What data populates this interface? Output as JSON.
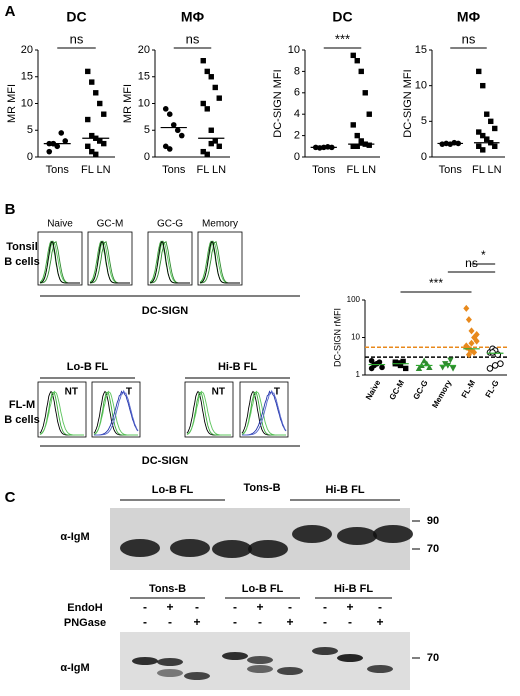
{
  "panel_labels": [
    "A",
    "B",
    "C"
  ],
  "chart_data": [
    {
      "type": "dot",
      "title": "DC",
      "y_label": "MR  MFI",
      "categories": [
        "Tons",
        "FL LN"
      ],
      "values": [
        [
          2.5,
          2.5,
          2,
          4.5,
          3,
          1,
          2.5
        ],
        [
          16,
          14,
          12,
          10,
          8,
          7,
          4,
          3.5,
          3,
          2.5,
          2,
          1,
          0.5,
          3
        ]
      ],
      "medians": [
        2.5,
        3.5
      ],
      "ylim": [
        0,
        20
      ],
      "yticks": [
        0,
        5,
        10,
        15,
        20
      ],
      "significance": "ns",
      "markers": [
        "circle",
        "square"
      ],
      "colors": [
        "#000000",
        "#000000"
      ],
      "median_color": "#000000"
    },
    {
      "type": "dot",
      "title": "MΦ",
      "y_label": "MR  MFI",
      "categories": [
        "Tons",
        "FL LN"
      ],
      "values": [
        [
          9,
          8,
          6,
          5,
          4,
          2,
          1.5
        ],
        [
          18,
          16,
          15,
          13,
          11,
          10,
          9,
          5,
          3,
          2,
          1,
          0.5,
          2.5
        ]
      ],
      "medians": [
        5.5,
        3.5
      ],
      "ylim": [
        0,
        20
      ],
      "yticks": [
        0,
        5,
        10,
        15,
        20
      ],
      "significance": "ns",
      "markers": [
        "circle",
        "square"
      ],
      "colors": [
        "#000000",
        "#000000"
      ],
      "median_color": "#000000"
    },
    {
      "type": "dot",
      "title": "DC",
      "y_label": "DC-SIGN  MFI",
      "categories": [
        "Tons",
        "FL LN"
      ],
      "values": [
        [
          0.9,
          0.85,
          0.9,
          0.95,
          0.9
        ],
        [
          9.5,
          9,
          8,
          6,
          4,
          3,
          2,
          1.5,
          1.2,
          1.1,
          1,
          1,
          1.3
        ]
      ],
      "medians": [
        0.9,
        1.2
      ],
      "ylim": [
        0,
        10
      ],
      "yticks": [
        0,
        2,
        4,
        6,
        8,
        10
      ],
      "significance": "***",
      "markers": [
        "circle",
        "square"
      ],
      "colors": [
        "#000000",
        "#000000"
      ],
      "median_color": "#000000"
    },
    {
      "type": "dot",
      "title": "MΦ",
      "y_label": "DC-SIGN  MFI",
      "categories": [
        "Tons",
        "FL LN"
      ],
      "values": [
        [
          1.8,
          1.9,
          1.8,
          2,
          1.9
        ],
        [
          12,
          10,
          6,
          5,
          4,
          3.5,
          3,
          2.5,
          2,
          1.5,
          1.5,
          1,
          2.5
        ]
      ],
      "medians": [
        1.9,
        2
      ],
      "ylim": [
        0,
        15
      ],
      "yticks": [
        0,
        5,
        10,
        15
      ],
      "significance": "ns",
      "markers": [
        "circle",
        "square"
      ],
      "colors": [
        "#000000",
        "#000000"
      ],
      "median_color": "#000000"
    },
    {
      "type": "dot",
      "y_label": "DC-SIGN rMFI",
      "categories": [
        "Naive",
        "GC-M",
        "GC-G",
        "Memory",
        "FL-M",
        "FL-G"
      ],
      "values": [
        [
          1.5,
          1.8,
          2,
          2.2,
          1.6,
          2.4,
          1.9
        ],
        [
          2,
          2.1,
          1.8,
          2.3,
          1.5,
          2.2,
          2
        ],
        [
          1.5,
          1.8,
          2.4,
          2,
          1.6
        ],
        [
          1.6,
          2,
          1.8,
          2.5,
          1.5
        ],
        [
          60,
          30,
          15,
          10,
          8,
          6,
          5,
          4.5,
          4,
          12,
          5.5,
          3.5,
          7
        ],
        [
          4,
          5,
          4.5,
          3.5,
          2,
          1.5,
          4,
          1.8
        ]
      ],
      "medians": [
        1.9,
        2,
        1.8,
        1.8,
        5,
        3.8
      ],
      "log_scale": true,
      "ylim": [
        1,
        100
      ],
      "yticks": [
        1,
        10,
        100
      ],
      "markers": [
        "circle",
        "square",
        "triangle",
        "invtriangle",
        "diamond",
        "open-circle"
      ],
      "colors": [
        "#000000",
        "#000000",
        "#2e8b2e",
        "#2e8b2e",
        "#e8891c",
        "#000000"
      ],
      "median_color": "#2ea82e",
      "reference_lines": [
        {
          "value": 5.5,
          "color": "#e8891c"
        },
        {
          "value": 3,
          "color": "#000000"
        }
      ],
      "comparisons": [
        {
          "label": "***",
          "from": "GC-M",
          "to": "FL-M"
        },
        {
          "label": "ns",
          "from": "Memory",
          "to": "FL-G"
        },
        {
          "label": "*",
          "from": "FL-M",
          "to": "FL-G"
        }
      ]
    }
  ],
  "flow": {
    "top_row": {
      "label": [
        "Tonsil",
        "B cells"
      ],
      "titles": [
        "Naive",
        "GC-M",
        "GC-G",
        "Memory"
      ],
      "axis_label": "DC-SIGN"
    },
    "bottom_row": {
      "label": [
        "FL-M",
        "B cells"
      ],
      "groups": [
        "Lo-B FL",
        "Hi-B FL"
      ],
      "tags": [
        "NT",
        "T",
        "NT",
        "T"
      ],
      "axis_label": "DC-SIGN"
    }
  },
  "blot": {
    "top": {
      "groups": [
        "Lo-B FL",
        "Tons-B",
        "Hi-B FL"
      ],
      "antibody": "α-IgM",
      "size_markers": [
        "90",
        "70"
      ]
    },
    "bottom": {
      "groups": [
        "Tons-B",
        "Lo-B FL",
        "Hi-B FL"
      ],
      "treatments": [
        {
          "label": "EndoH",
          "signs": [
            "-",
            "+",
            "-",
            "-",
            "+",
            "-",
            "-",
            "+",
            "-"
          ]
        },
        {
          "label": "PNGase",
          "signs": [
            "-",
            "-",
            "+",
            "-",
            "-",
            "+",
            "-",
            "-",
            "+"
          ]
        }
      ],
      "antibody": "α-IgM",
      "size_markers": [
        "70"
      ]
    }
  }
}
